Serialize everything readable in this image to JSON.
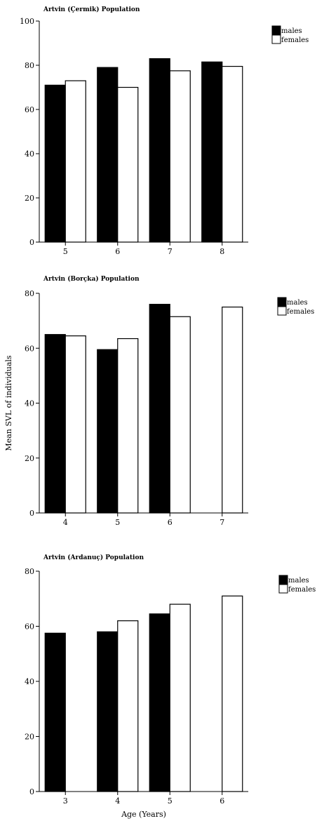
{
  "chart_data": [
    {
      "type": "bar",
      "title": "Artvin (Çermik) Population",
      "categories": [
        "5",
        "6",
        "7",
        "8"
      ],
      "series": [
        {
          "name": "males",
          "values": [
            71,
            79,
            83,
            81.5
          ],
          "color": "#000000"
        },
        {
          "name": "females",
          "values": [
            73,
            70,
            77.5,
            79.5
          ],
          "color": "#ffffff"
        }
      ],
      "ylim": [
        0,
        100
      ],
      "yticks": [
        0,
        20,
        40,
        60,
        80,
        100
      ],
      "xlabel": "",
      "ylabel": "",
      "legend": "right"
    },
    {
      "type": "bar",
      "title": "Artvin (Borçka) Population",
      "categories": [
        "4",
        "5",
        "6",
        "7"
      ],
      "series": [
        {
          "name": "males",
          "values": [
            65,
            59.5,
            76,
            null
          ],
          "color": "#000000"
        },
        {
          "name": "females",
          "values": [
            64.5,
            63.5,
            71.5,
            75
          ],
          "color": "#ffffff"
        }
      ],
      "ylim": [
        0,
        80
      ],
      "yticks": [
        0,
        20,
        40,
        60,
        80
      ],
      "xlabel": "",
      "ylabel": "Mean SVL of individuals",
      "legend": "right"
    },
    {
      "type": "bar",
      "title": "Artvin (Ardanuç) Population",
      "categories": [
        "3",
        "4",
        "5",
        "6"
      ],
      "series": [
        {
          "name": "males",
          "values": [
            57.5,
            58,
            64.5,
            null
          ],
          "color": "#000000"
        },
        {
          "name": "females",
          "values": [
            null,
            62,
            68,
            71
          ],
          "color": "#ffffff"
        }
      ],
      "ylim": [
        0,
        80
      ],
      "yticks": [
        0,
        20,
        40,
        60,
        80
      ],
      "xlabel": "Age (Years)",
      "ylabel": "",
      "legend": "right"
    }
  ]
}
